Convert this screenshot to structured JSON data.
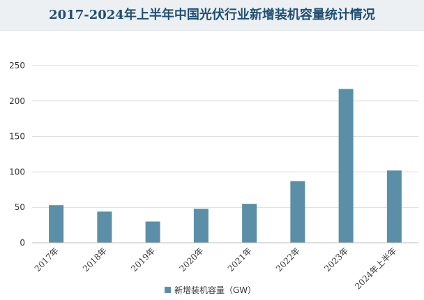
{
  "title": "2017-2024年上半年中国光伏行业新增装机容量统计情况",
  "colors": {
    "bar": "#5b8fa8",
    "title_bg": "#ecf0f3",
    "title_text": "#1f4e72",
    "grid": "#d9d9d9"
  },
  "chart_data": {
    "type": "bar",
    "title": "2017-2024年上半年中国光伏行业新增装机容量统计情况",
    "categories": [
      "2017年",
      "2018年",
      "2019年",
      "2020年",
      "2021年",
      "2022年",
      "2023年",
      "2024年上半年"
    ],
    "series": [
      {
        "name": "新增装机容量（GW）",
        "values": [
          53,
          44,
          30,
          48,
          55,
          87,
          217,
          102
        ]
      }
    ],
    "xlabel": "",
    "ylabel": "",
    "ylim": [
      0,
      250
    ],
    "yticks": [
      0,
      50,
      100,
      150,
      200,
      250
    ],
    "grid": true,
    "legend": "bottom"
  }
}
